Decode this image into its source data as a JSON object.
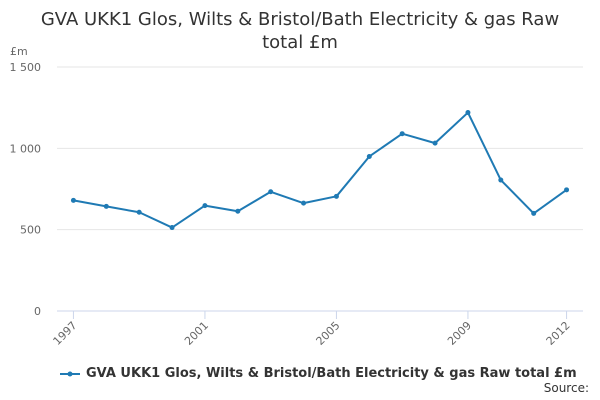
{
  "page": {
    "title": "GVA UKK1 Glos, Wilts & Bristol/Bath Electricity & gas Raw total £m"
  },
  "colors": {
    "series": "#1f7ab4",
    "grid": "#e6e6e6",
    "axis": "#ccd6eb",
    "text": "#666666"
  },
  "chart_data": {
    "type": "line",
    "title": "GVA UKK1 Glos, Wilts & Bristol/Bath Electricity & gas Raw total £m",
    "ylabel": "£m",
    "xlabel": "",
    "ylim": [
      0,
      1500
    ],
    "yticks": [
      0,
      500,
      1000,
      1500
    ],
    "ytick_labels": [
      "0",
      "500",
      "1 000",
      "1 500"
    ],
    "xticks": [
      1997,
      2001,
      2005,
      2009,
      2012
    ],
    "grid": true,
    "legend_position": "bottom",
    "series": [
      {
        "name": "GVA UKK1 Glos, Wilts & Bristol/Bath Electricity & gas Raw total £m",
        "x": [
          1997,
          1998,
          1999,
          2000,
          2001,
          2002,
          2003,
          2004,
          2005,
          2006,
          2007,
          2008,
          2009,
          2010,
          2011,
          2012
        ],
        "values": [
          680,
          643,
          607,
          513,
          648,
          613,
          733,
          663,
          705,
          950,
          1090,
          1032,
          1220,
          805,
          600,
          745
        ]
      }
    ]
  },
  "source_label": "Source:"
}
